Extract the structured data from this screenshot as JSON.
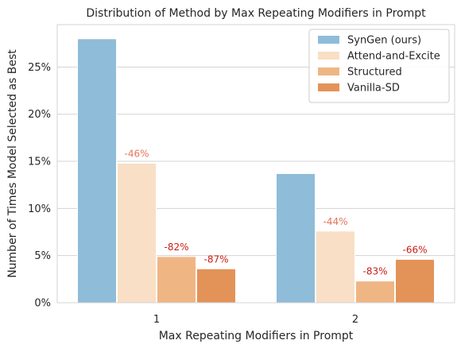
{
  "chart_data": {
    "type": "bar",
    "title": "Distribution of Method by Max Repeating Modifiers in Prompt",
    "xlabel": "Max Repeating Modifiers in Prompt",
    "ylabel": "Number of Times Model Selected as Best",
    "categories": [
      "1",
      "2"
    ],
    "ylim": [
      0,
      29.5
    ],
    "yticks": [
      0,
      5,
      10,
      15,
      20,
      25
    ],
    "ytick_labels": [
      "0%",
      "5%",
      "10%",
      "15%",
      "20%",
      "25%"
    ],
    "grid": "horizontal",
    "legend": "top-right",
    "series": [
      {
        "name": "SynGen (ours)",
        "color": "#8fbcd8",
        "values": [
          28.0,
          13.7
        ],
        "annotations": [
          "",
          ""
        ],
        "annotation_color": "#000000"
      },
      {
        "name": "Attend-and-Excite",
        "color": "#f8dfc6",
        "values": [
          14.8,
          7.6
        ],
        "annotations": [
          "-46%",
          "-44%"
        ],
        "annotation_color": "#e8735a"
      },
      {
        "name": "Structured",
        "color": "#efb684",
        "values": [
          4.9,
          2.3
        ],
        "annotations": [
          "-82%",
          "-83%"
        ],
        "annotation_color": "#cc1b14"
      },
      {
        "name": "Vanilla-SD",
        "color": "#e39358",
        "values": [
          3.6,
          4.6
        ],
        "annotations": [
          "-87%",
          "-66%"
        ],
        "annotation_color": "#cc1b14"
      }
    ]
  }
}
